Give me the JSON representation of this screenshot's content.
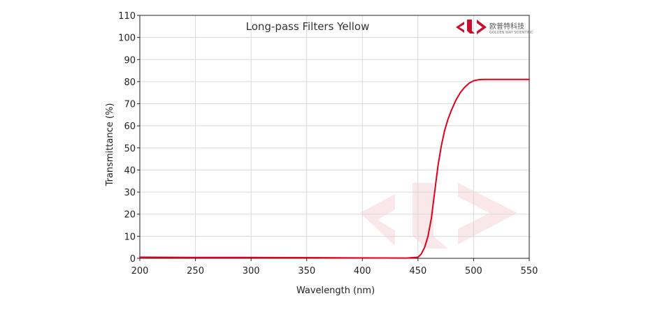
{
  "chart_data": {
    "type": "line",
    "title": "Long-pass Filters Yellow",
    "xlabel": "Wavelength (nm)",
    "ylabel": "Transmittance (%)",
    "xlim": [
      200,
      550
    ],
    "ylim": [
      0,
      110
    ],
    "xticks": [
      200,
      250,
      300,
      350,
      400,
      450,
      500,
      550
    ],
    "yticks": [
      0,
      10,
      20,
      30,
      40,
      50,
      60,
      70,
      80,
      90,
      100,
      110
    ],
    "grid": true,
    "series": [
      {
        "color": "#e0001b",
        "x": [
          200,
          250,
          300,
          350,
          400,
          440,
          450,
          453,
          456,
          459,
          462,
          465,
          468,
          471,
          474,
          477,
          480,
          484,
          488,
          492,
          496,
          500,
          505,
          510,
          520,
          530,
          540,
          550
        ],
        "y": [
          0.5,
          0.4,
          0.4,
          0.3,
          0.2,
          0.1,
          0.5,
          2,
          5,
          10,
          18,
          30,
          42,
          51,
          58,
          63,
          67,
          71.5,
          75,
          77.5,
          79.3,
          80.4,
          80.9,
          81,
          81,
          81,
          81,
          81
        ]
      }
    ]
  },
  "brand": {
    "name_cn": "欧普特科技",
    "name_en": "GOLDEN WAY SCIENTIFIC",
    "color": "#c8102e"
  }
}
